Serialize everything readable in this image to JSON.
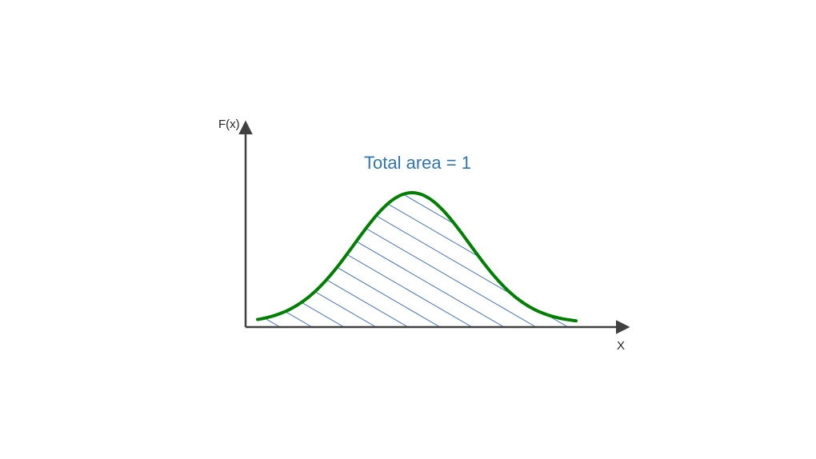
{
  "diagram": {
    "y_axis_label": "F(x)",
    "x_axis_label": "X",
    "annotation": "Total area = 1",
    "curve": "bell-curve",
    "shading": "diagonal-hatch"
  },
  "colors": {
    "axis": "#404040",
    "curve": "#008000",
    "hatch": "#4472c4",
    "annotation": "#2e75b6",
    "label": "#262626"
  }
}
